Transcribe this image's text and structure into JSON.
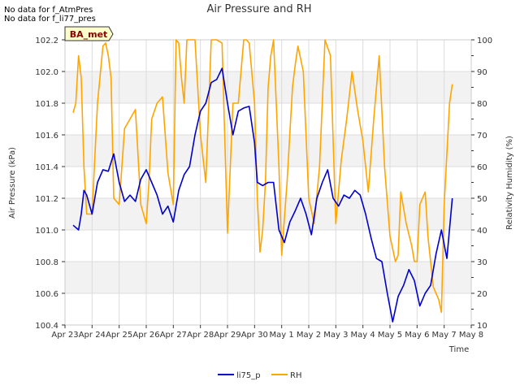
{
  "notes": [
    "No data for f_AtmPres",
    "No data for f_li77_pres"
  ],
  "badge": "BA_met",
  "chart_data": {
    "type": "line",
    "title": "Air Pressure and RH",
    "xlabel": "Time",
    "ylabel": "Air Pressure (kPa)",
    "ylabel_right": "Relativity Humidity (%)",
    "x_ticks": [
      "Apr 23",
      "Apr 24",
      "Apr 25",
      "Apr 26",
      "Apr 27",
      "Apr 28",
      "Apr 29",
      "Apr 30",
      "May 1",
      "May 2",
      "May 3",
      "May 4",
      "May 5",
      "May 6",
      "May 7",
      "May 8"
    ],
    "xlim": [
      0,
      15
    ],
    "ylim": [
      100.4,
      102.2
    ],
    "y_ticks": [
      "100.4",
      "100.6",
      "100.8",
      "101.0",
      "101.2",
      "101.4",
      "101.6",
      "101.8",
      "102.0",
      "102.2"
    ],
    "y2lim": [
      10,
      100
    ],
    "y2_ticks": [
      "10",
      "20",
      "30",
      "40",
      "50",
      "60",
      "70",
      "80",
      "90",
      "100"
    ],
    "grid": true,
    "legend_position": "bottom",
    "colors": {
      "li75_p": "#0000cc",
      "RH": "#ffa500",
      "band": "#f2f2f2",
      "grid": "#dcdcdc"
    },
    "series": [
      {
        "name": "li75_p",
        "axis": "left",
        "x": [
          0.3,
          0.5,
          0.6,
          0.7,
          0.8,
          1.0,
          1.2,
          1.4,
          1.6,
          1.8,
          2.0,
          2.2,
          2.4,
          2.6,
          2.8,
          3.0,
          3.2,
          3.4,
          3.6,
          3.8,
          4.0,
          4.2,
          4.4,
          4.6,
          4.8,
          5.0,
          5.2,
          5.4,
          5.6,
          5.8,
          6.0,
          6.2,
          6.4,
          6.6,
          6.8,
          7.0,
          7.1,
          7.3,
          7.5,
          7.7,
          7.9,
          8.1,
          8.3,
          8.5,
          8.7,
          8.9,
          9.1,
          9.3,
          9.5,
          9.7,
          9.9,
          10.1,
          10.3,
          10.5,
          10.7,
          10.9,
          11.1,
          11.3,
          11.5,
          11.7,
          11.9,
          12.1,
          12.3,
          12.5,
          12.7,
          12.9,
          13.1,
          13.3,
          13.5,
          13.7,
          13.9,
          14.1,
          14.3
        ],
        "values": [
          101.03,
          101.0,
          101.1,
          101.25,
          101.22,
          101.1,
          101.3,
          101.38,
          101.37,
          101.48,
          101.3,
          101.18,
          101.22,
          101.18,
          101.32,
          101.38,
          101.3,
          101.22,
          101.1,
          101.15,
          101.05,
          101.25,
          101.35,
          101.4,
          101.6,
          101.75,
          101.8,
          101.93,
          101.95,
          102.02,
          101.8,
          101.6,
          101.75,
          101.77,
          101.78,
          101.55,
          101.3,
          101.28,
          101.3,
          101.3,
          101.0,
          100.92,
          101.05,
          101.12,
          101.2,
          101.1,
          100.97,
          101.2,
          101.3,
          101.38,
          101.2,
          101.15,
          101.22,
          101.2,
          101.25,
          101.22,
          101.1,
          100.95,
          100.82,
          100.8,
          100.6,
          100.42,
          100.58,
          100.65,
          100.75,
          100.68,
          100.52,
          100.6,
          100.65,
          100.85,
          101.0,
          100.82,
          101.2
        ]
      },
      {
        "name": "RH",
        "axis": "right",
        "x": [
          0.3,
          0.4,
          0.5,
          0.6,
          0.7,
          0.8,
          1.0,
          1.2,
          1.4,
          1.5,
          1.6,
          1.7,
          1.8,
          2.0,
          2.2,
          2.4,
          2.6,
          2.8,
          3.0,
          3.1,
          3.2,
          3.4,
          3.6,
          3.8,
          4.0,
          4.1,
          4.2,
          4.3,
          4.4,
          4.5,
          4.6,
          4.8,
          5.0,
          5.2,
          5.4,
          5.6,
          5.8,
          6.0,
          6.2,
          6.4,
          6.6,
          6.7,
          6.8,
          7.0,
          7.1,
          7.2,
          7.3,
          7.4,
          7.5,
          7.6,
          7.7,
          7.9,
          8.0,
          8.2,
          8.4,
          8.5,
          8.6,
          8.8,
          9.0,
          9.2,
          9.4,
          9.6,
          9.8,
          10.0,
          10.2,
          10.4,
          10.6,
          10.8,
          11.0,
          11.2,
          11.4,
          11.6,
          11.8,
          12.0,
          12.2,
          12.3,
          12.4,
          12.6,
          12.8,
          12.9,
          13.0,
          13.1,
          13.3,
          13.4,
          13.6,
          13.8,
          13.9,
          14.0,
          14.2,
          14.3
        ],
        "values": [
          77,
          80,
          95,
          88,
          60,
          45,
          45,
          80,
          98,
          99,
          95,
          88,
          50,
          48,
          72,
          75,
          78,
          48,
          42,
          55,
          75,
          80,
          82,
          58,
          48,
          100,
          99,
          88,
          80,
          100,
          100,
          100,
          70,
          55,
          100,
          100,
          99,
          39,
          80,
          80,
          100,
          100,
          99,
          80,
          50,
          33,
          40,
          55,
          85,
          95,
          100,
          60,
          32,
          55,
          85,
          92,
          98,
          90,
          50,
          42,
          60,
          100,
          95,
          42,
          62,
          75,
          90,
          78,
          68,
          52,
          75,
          95,
          60,
          38,
          30,
          32,
          52,
          42,
          35,
          30,
          30,
          48,
          52,
          38,
          22,
          18,
          14,
          48,
          80,
          86
        ]
      }
    ]
  },
  "legend": [
    {
      "label": "li75_p",
      "color": "#0000cc"
    },
    {
      "label": "RH",
      "color": "#ffa500"
    }
  ]
}
